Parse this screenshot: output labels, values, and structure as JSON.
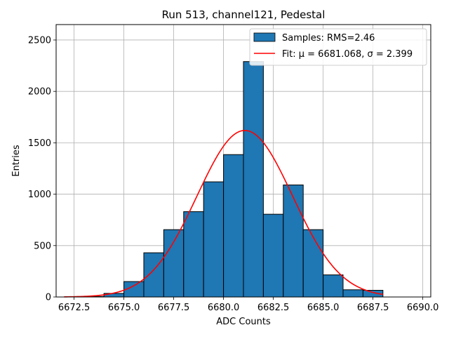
{
  "chart_data": {
    "type": "bar",
    "title": "Run 513, channel121, Pedestal",
    "xlabel": "ADC Counts",
    "ylabel": "Entries",
    "xlim": [
      6671.6,
      6690.4
    ],
    "ylim": [
      0,
      2650
    ],
    "grid": true,
    "legend_position": "top-right",
    "x_ticks": [
      6672.5,
      6675.0,
      6677.5,
      6680.0,
      6682.5,
      6685.0,
      6687.5,
      6690.0
    ],
    "x_tick_labels": [
      "6672.5",
      "6675.0",
      "6677.5",
      "6680.0",
      "6682.5",
      "6685.0",
      "6687.5",
      "6690.0"
    ],
    "y_ticks": [
      0,
      500,
      1000,
      1500,
      2000,
      2500
    ],
    "y_tick_labels": [
      "0",
      "500",
      "1000",
      "1500",
      "2000",
      "2500"
    ],
    "histogram": {
      "name": "Samples: RMS=2.46",
      "color": "#1f77b4",
      "edge_color": "#000000",
      "bin_edges": [
        6673,
        6674,
        6675,
        6676,
        6677,
        6678,
        6679,
        6680,
        6681,
        6682,
        6683,
        6684,
        6685,
        6686,
        6687,
        6688
      ],
      "counts": [
        5,
        35,
        150,
        430,
        655,
        830,
        1120,
        1385,
        2290,
        805,
        1090,
        655,
        215,
        70,
        65
      ]
    },
    "fit": {
      "name": "Fit: μ = 6681.068, σ = 2.399",
      "color": "#ff0000",
      "mu": 6681.068,
      "sigma": 2.399,
      "amplitude": 1620,
      "x_range": [
        6672,
        6688
      ]
    }
  }
}
